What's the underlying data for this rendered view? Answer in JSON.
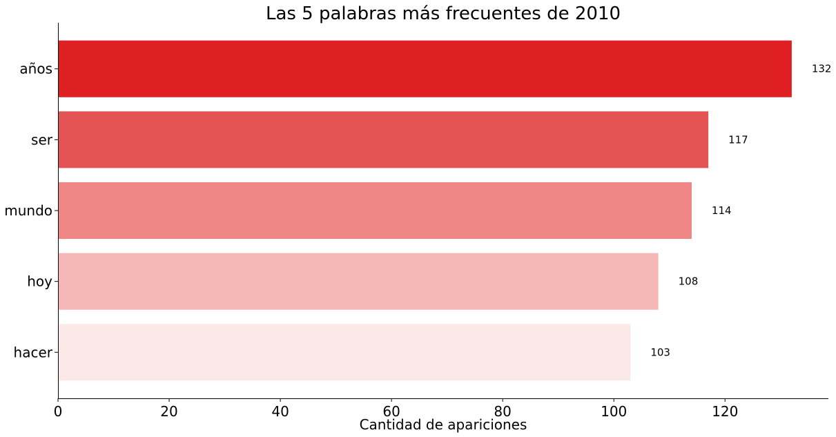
{
  "chart_data": {
    "type": "bar",
    "orientation": "horizontal",
    "title": "Las 5 palabras más frecuentes de 2010",
    "xlabel": "Cantidad de apariciones",
    "ylabel": "",
    "xlim": [
      0,
      138.6
    ],
    "xticks": [
      "0",
      "20",
      "40",
      "60",
      "80",
      "100",
      "120"
    ],
    "categories": [
      "años",
      "ser",
      "mundo",
      "hoy",
      "hacer"
    ],
    "values": [
      132,
      117,
      114,
      108,
      103
    ],
    "data_labels": [
      "132",
      "117",
      "114",
      "108",
      "103"
    ],
    "colors": [
      "#de2022",
      "#e55454",
      "#ed8684",
      "#f5b7b6",
      "#fbe9e8"
    ],
    "grid": false,
    "legend": "none"
  }
}
